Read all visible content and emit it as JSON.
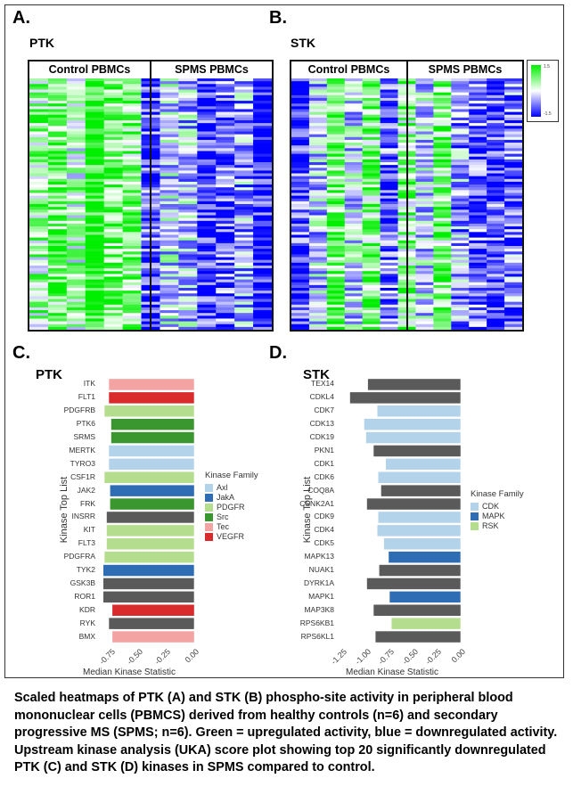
{
  "panels": {
    "a": {
      "label": "A.",
      "title": "PTK",
      "groups": [
        "Control PBMCs",
        "SPMS PBMCs"
      ]
    },
    "b": {
      "label": "B.",
      "title": "STK",
      "groups": [
        "Control PBMCs",
        "SPMS PBMCs"
      ]
    },
    "c": {
      "label": "C.",
      "title": "PTK"
    },
    "d": {
      "label": "D.",
      "title": "STK"
    }
  },
  "legend_scale": {
    "max": "1.5",
    "min": "-1.5",
    "colors": {
      "high": "#00ee00",
      "mid": "#ffffff",
      "low": "#0000ff"
    }
  },
  "chart_data": [
    {
      "type": "bar",
      "orientation": "horizontal",
      "title": "PTK",
      "xlabel": "Median Kinase Statistic",
      "ylabel": "Kinase Top List",
      "xlim": [
        -0.85,
        0.05
      ],
      "xticks": [
        "-0.75",
        "-0.50",
        "-0.25",
        "0.00"
      ],
      "legend_title": "Kinase Family",
      "legend": [
        {
          "name": "Axl",
          "color": "#b3d3ea"
        },
        {
          "name": "JakA",
          "color": "#2e6db4"
        },
        {
          "name": "PDGFR",
          "color": "#b4de8e"
        },
        {
          "name": "Src",
          "color": "#3a962e"
        },
        {
          "name": "Tec",
          "color": "#f4a3a3"
        },
        {
          "name": "VEGFR",
          "color": "#d92b2b"
        }
      ],
      "categories": [
        "ITK",
        "FLT1",
        "PDGFRB",
        "PTK6",
        "SRMS",
        "MERTK",
        "TYRO3",
        "CSF1R",
        "JAK2",
        "FRK",
        "INSRR",
        "KIT",
        "FLT3",
        "PDGFRA",
        "TYK2",
        "GSK3B",
        "ROR1",
        "KDR",
        "RYK",
        "BMX"
      ],
      "values": [
        -0.76,
        -0.76,
        -0.8,
        -0.74,
        -0.74,
        -0.76,
        -0.76,
        -0.8,
        -0.75,
        -0.75,
        -0.78,
        -0.78,
        -0.78,
        -0.8,
        -0.81,
        -0.81,
        -0.81,
        -0.73,
        -0.76,
        -0.73
      ],
      "families": [
        "Tec",
        "VEGFR",
        "PDGFR",
        "Src",
        "Src",
        "Axl",
        "Axl",
        "PDGFR",
        "JakA",
        "Src",
        "none",
        "PDGFR",
        "PDGFR",
        "PDGFR",
        "JakA",
        "none",
        "none",
        "VEGFR",
        "none",
        "Tec"
      ]
    },
    {
      "type": "bar",
      "orientation": "horizontal",
      "title": "STK",
      "xlabel": "Median Kinase Statistic",
      "ylabel": "Kinase Top List",
      "xlim": [
        -1.3,
        0.05
      ],
      "xticks": [
        "-1.25",
        "-1.00",
        "-0.75",
        "-0.50",
        "-0.25",
        "0.00"
      ],
      "legend_title": "Kinase Family",
      "legend": [
        {
          "name": "CDK",
          "color": "#b3d3ea"
        },
        {
          "name": "MAPK",
          "color": "#2e6db4"
        },
        {
          "name": "RSK",
          "color": "#b4de8e"
        }
      ],
      "categories": [
        "TEX14",
        "CDKL4",
        "CDK7",
        "CDK13",
        "CDK19",
        "PKN1",
        "CDK1",
        "CDK6",
        "COQ8A",
        "CSNK2A1",
        "CDK9",
        "CDK4",
        "CDK5",
        "MAPK13",
        "NUAK1",
        "DYRK1A",
        "MAPK1",
        "MAP3K8",
        "RPS6KB1",
        "RPS6KL1"
      ],
      "values": [
        -0.98,
        -1.17,
        -0.88,
        -1.02,
        -1.0,
        -0.92,
        -0.79,
        -0.87,
        -0.84,
        -0.99,
        -0.87,
        -0.88,
        -0.81,
        -0.76,
        -0.86,
        -0.99,
        -0.75,
        -0.92,
        -0.73,
        -0.9
      ],
      "families": [
        "none",
        "none",
        "CDK",
        "CDK",
        "CDK",
        "none",
        "CDK",
        "CDK",
        "none",
        "none",
        "CDK",
        "CDK",
        "CDK",
        "MAPK",
        "none",
        "none",
        "MAPK",
        "none",
        "RSK",
        "none"
      ]
    }
  ],
  "caption": "Scaled heatmaps of PTK (A) and STK (B) phospho-site activity in peripheral blood mononuclear cells (PBMCS) derived from healthy controls (n=6) and secondary progressive MS (SPMS; n=6). Green = upregulated activity, blue = downregulated activity. Upstream kinase analysis (UKA) score plot showing top 20 significantly downregulated PTK (C) and STK (D) kinases in SPMS compared to control."
}
